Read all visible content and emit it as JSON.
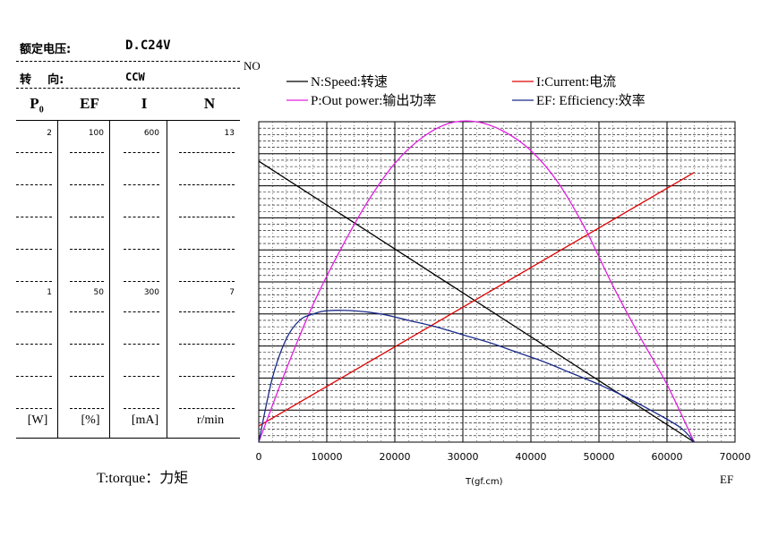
{
  "spec": {
    "voltage_label": "额定电压:",
    "voltage_value": "D.C24V",
    "direction_label": "转    向:",
    "direction_value": "CCW"
  },
  "table": {
    "columns": [
      {
        "head": "P",
        "sub": "0",
        "top": "2",
        "mid": "1",
        "unit": "[W]"
      },
      {
        "head": "EF",
        "sub": "",
        "top": "100",
        "mid": "50",
        "unit": "[%]"
      },
      {
        "head": "I",
        "sub": "",
        "top": "600",
        "mid": "300",
        "unit": "[mA]"
      },
      {
        "head": "N",
        "sub": "",
        "top": "13",
        "mid": "7",
        "unit": "r/min"
      }
    ]
  },
  "footer": {
    "torque_note": "T:torque：力矩"
  },
  "chart_data": {
    "type": "line",
    "corner_top_label": "NO",
    "corner_bottom_label": "EF",
    "xlabel": "T(gf.cm)",
    "xlim": [
      0,
      70000
    ],
    "x_ticks": [
      "0",
      "10000",
      "20000",
      "30000",
      "40000",
      "50000",
      "60000",
      "70000"
    ],
    "grid": true,
    "legend": [
      {
        "name": "N:Speed:转速",
        "color": "#000000"
      },
      {
        "name": "I:Current:电流",
        "color": "#e00000"
      },
      {
        "name": "P:Out power:输出功率",
        "color": "#e020e0"
      },
      {
        "name": "EF: Efficiency:效率",
        "color": "#1a2a8a"
      }
    ],
    "series": [
      {
        "name": "N:Speed:转速",
        "color": "#000000",
        "axis_max": 13,
        "points": [
          [
            0,
            11.4
          ],
          [
            64000,
            0
          ]
        ]
      },
      {
        "name": "I:Current:电流",
        "color": "#e00000",
        "axis_max": 600,
        "points": [
          [
            0,
            30
          ],
          [
            64000,
            505
          ]
        ]
      },
      {
        "name": "P:Out power:输出功率",
        "color": "#e020e0",
        "axis_max": 2,
        "points": [
          [
            0,
            0
          ],
          [
            4000,
            0.45
          ],
          [
            8000,
            0.86
          ],
          [
            12000,
            1.2
          ],
          [
            16000,
            1.5
          ],
          [
            20000,
            1.74
          ],
          [
            24000,
            1.9
          ],
          [
            28000,
            1.99
          ],
          [
            32000,
            2.0
          ],
          [
            36000,
            1.94
          ],
          [
            40000,
            1.82
          ],
          [
            44000,
            1.62
          ],
          [
            48000,
            1.33
          ],
          [
            52000,
            0.98
          ],
          [
            56000,
            0.66
          ],
          [
            60000,
            0.36
          ],
          [
            64000,
            0
          ]
        ]
      },
      {
        "name": "EF: Efficiency:效率",
        "color": "#1a2a8a",
        "axis_max": 100,
        "points": [
          [
            0,
            0
          ],
          [
            2000,
            20
          ],
          [
            4000,
            32
          ],
          [
            6000,
            38
          ],
          [
            8000,
            40
          ],
          [
            10000,
            41
          ],
          [
            14000,
            41
          ],
          [
            18000,
            40
          ],
          [
            22000,
            38
          ],
          [
            26000,
            36
          ],
          [
            30000,
            33.5
          ],
          [
            34000,
            31
          ],
          [
            38000,
            28
          ],
          [
            42000,
            25
          ],
          [
            46000,
            21.5
          ],
          [
            50000,
            18
          ],
          [
            54000,
            14
          ],
          [
            58000,
            9.5
          ],
          [
            62000,
            4.5
          ],
          [
            64000,
            0
          ]
        ]
      }
    ]
  }
}
